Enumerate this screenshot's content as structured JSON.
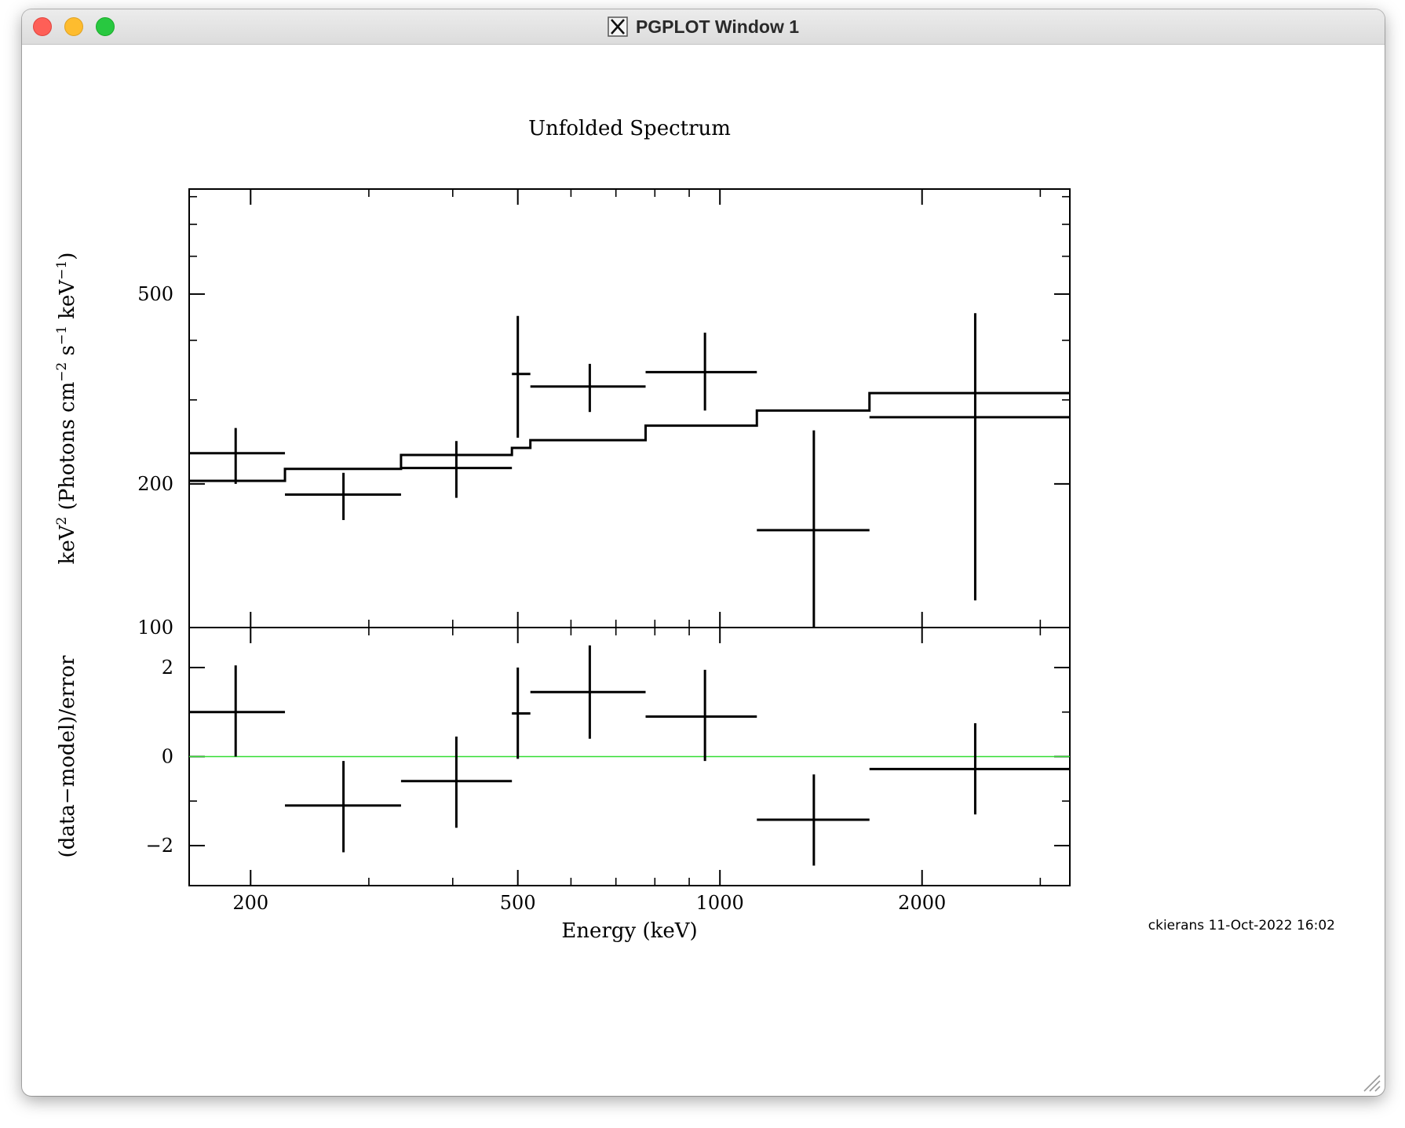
{
  "window": {
    "title": "PGPLOT Window 1",
    "controls": {
      "close_color": "#fe5f57",
      "minimize_color": "#febc2e",
      "maximize_color": "#28c840"
    },
    "app_icon": "x11-icon"
  },
  "footer": {
    "stamp": "ckierans 11-Oct-2022 16:02"
  },
  "chart_data": [
    {
      "type": "line",
      "title": "Unfolded Spectrum",
      "xlabel": "",
      "ylabel_parts": [
        "keV",
        "2",
        " (Photons cm",
        "−2",
        " s",
        "−1",
        " keV",
        "−1",
        ")"
      ],
      "xscale": "log",
      "yscale": "log",
      "xlim": [
        162,
        3320
      ],
      "ylim": [
        100,
        830
      ],
      "x_ticks": [
        200,
        500,
        1000,
        2000
      ],
      "x_tick_labels": [
        "200",
        "500",
        "1000",
        "2000"
      ],
      "y_ticks": [
        100,
        200,
        500
      ],
      "y_tick_labels": [
        "100",
        "200",
        "500"
      ],
      "data_color": "#000000",
      "series": [
        {
          "kind": "errorbars",
          "points": [
            {
              "x": 190,
              "xlo": 162,
              "xhi": 225,
              "y": 232,
              "ylo": 200,
              "yhi": 262
            },
            {
              "x": 275,
              "xlo": 225,
              "xhi": 335,
              "y": 190,
              "ylo": 168,
              "yhi": 211
            },
            {
              "x": 405,
              "xlo": 335,
              "xhi": 490,
              "y": 216,
              "ylo": 187,
              "yhi": 246
            },
            {
              "x": 500,
              "xlo": 490,
              "xhi": 522,
              "y": 340,
              "ylo": 250,
              "yhi": 450
            },
            {
              "x": 640,
              "xlo": 522,
              "xhi": 775,
              "y": 320,
              "ylo": 283,
              "yhi": 357
            },
            {
              "x": 950,
              "xlo": 775,
              "xhi": 1135,
              "y": 343,
              "ylo": 285,
              "yhi": 415
            },
            {
              "x": 1380,
              "xlo": 1135,
              "xhi": 1670,
              "y": 160,
              "ylo": 100,
              "yhi": 259
            },
            {
              "x": 2400,
              "xlo": 1670,
              "xhi": 3320,
              "y": 276,
              "ylo": 114,
              "yhi": 456
            }
          ]
        },
        {
          "kind": "model-step",
          "bins": [
            {
              "xlo": 162,
              "xhi": 225,
              "y": 203
            },
            {
              "xlo": 225,
              "xhi": 335,
              "y": 215
            },
            {
              "xlo": 335,
              "xhi": 490,
              "y": 230
            },
            {
              "xlo": 490,
              "xhi": 522,
              "y": 238
            },
            {
              "xlo": 522,
              "xhi": 775,
              "y": 247
            },
            {
              "xlo": 775,
              "xhi": 1135,
              "y": 265
            },
            {
              "xlo": 1135,
              "xhi": 1670,
              "y": 285
            },
            {
              "xlo": 1670,
              "xhi": 3320,
              "y": 310
            }
          ]
        }
      ]
    },
    {
      "type": "scatter",
      "title": "",
      "xlabel": "Energy (keV)",
      "ylabel": "(data−model)/error",
      "xscale": "log",
      "xlim": [
        162,
        3320
      ],
      "ylim": [
        -2.9,
        2.9
      ],
      "x_ticks": [
        200,
        500,
        1000,
        2000
      ],
      "x_tick_labels": [
        "200",
        "500",
        "1000",
        "2000"
      ],
      "y_ticks": [
        -2,
        0,
        2
      ],
      "y_tick_labels": [
        "−2",
        "0",
        "2"
      ],
      "zero_line_color": "#33dd33",
      "series": [
        {
          "kind": "errorbars",
          "points": [
            {
              "x": 190,
              "xlo": 162,
              "xhi": 225,
              "y": 1.0,
              "ylo": 0.0,
              "yhi": 2.05
            },
            {
              "x": 275,
              "xlo": 225,
              "xhi": 335,
              "y": -1.1,
              "ylo": -2.15,
              "yhi": -0.1
            },
            {
              "x": 405,
              "xlo": 335,
              "xhi": 490,
              "y": -0.55,
              "ylo": -1.6,
              "yhi": 0.45
            },
            {
              "x": 500,
              "xlo": 490,
              "xhi": 522,
              "y": 0.97,
              "ylo": -0.05,
              "yhi": 2.0
            },
            {
              "x": 640,
              "xlo": 522,
              "xhi": 775,
              "y": 1.45,
              "ylo": 0.4,
              "yhi": 2.5
            },
            {
              "x": 950,
              "xlo": 775,
              "xhi": 1135,
              "y": 0.9,
              "ylo": -0.1,
              "yhi": 1.95
            },
            {
              "x": 1380,
              "xlo": 1135,
              "xhi": 1670,
              "y": -1.42,
              "ylo": -2.45,
              "yhi": -0.4
            },
            {
              "x": 2400,
              "xlo": 1670,
              "xhi": 3320,
              "y": -0.28,
              "ylo": -1.3,
              "yhi": 0.75
            }
          ]
        }
      ]
    }
  ]
}
